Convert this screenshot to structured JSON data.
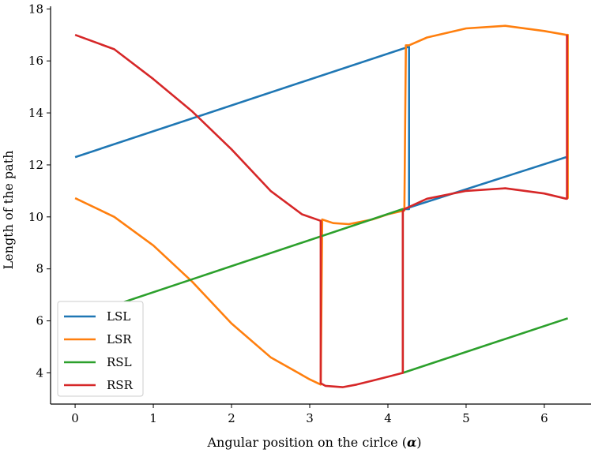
{
  "chart_data": {
    "type": "line",
    "xlabel": "Angular position on the cirlce (",
    "xlabel_symbol": "α",
    "xlabel_close": ")",
    "ylabel": "Length of the path",
    "xlim": [
      -0.314,
      6.597
    ],
    "ylim": [
      2.8,
      18.1
    ],
    "xticks": [
      0,
      1,
      2,
      3,
      4,
      5,
      6
    ],
    "yticks": [
      4,
      6,
      8,
      10,
      12,
      14,
      16,
      18
    ],
    "grid": false,
    "legend_position": "lower-left",
    "series": [
      {
        "name": "LSL",
        "color": "#1f77b4",
        "x": [
          0,
          4.27,
          4.27,
          4.21,
          6.28
        ],
        "y": [
          12.3,
          16.55,
          10.3,
          10.3,
          12.3
        ]
      },
      {
        "name": "LSR",
        "color": "#ff7f0e",
        "x": [
          0,
          0.5,
          1.0,
          1.5,
          2.0,
          2.5,
          3.0,
          3.14,
          3.16,
          3.3,
          3.5,
          3.8,
          4.0,
          4.21,
          4.23,
          4.27,
          4.5,
          5.0,
          5.5,
          6.0,
          6.28,
          6.3,
          6.3
        ],
        "y": [
          10.72,
          10.0,
          8.9,
          7.5,
          5.9,
          4.6,
          3.75,
          3.55,
          9.9,
          9.76,
          9.72,
          9.9,
          10.1,
          10.25,
          16.6,
          16.6,
          16.9,
          17.25,
          17.35,
          17.15,
          17.0,
          17.0,
          10.7
        ]
      },
      {
        "name": "RSL",
        "color": "#2ca02c",
        "x": [
          0,
          4.19,
          4.19,
          6.3
        ],
        "y": [
          6.1,
          10.3,
          4.0,
          6.1
        ]
      },
      {
        "name": "RSR",
        "color": "#d62728",
        "x": [
          0,
          0.5,
          1.0,
          1.5,
          2.0,
          2.5,
          2.9,
          3.14,
          3.14,
          3.2,
          3.42,
          3.6,
          3.8,
          4.0,
          4.19,
          4.19,
          4.21,
          4.5,
          5.0,
          5.5,
          6.0,
          6.28,
          6.29,
          6.29
        ],
        "y": [
          17.0,
          16.45,
          15.3,
          14.05,
          12.6,
          11.0,
          10.1,
          9.85,
          3.6,
          3.5,
          3.45,
          3.55,
          3.7,
          3.85,
          4.0,
          10.2,
          10.3,
          10.7,
          11.0,
          11.1,
          10.9,
          10.7,
          10.7,
          17.0
        ]
      }
    ]
  }
}
